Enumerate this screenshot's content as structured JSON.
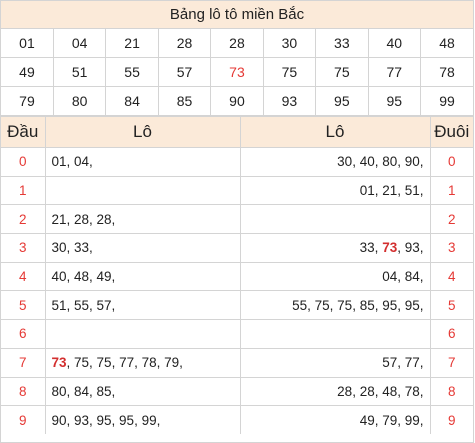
{
  "title": "Bảng lô tô miền Bắc",
  "numbers": [
    [
      "01",
      "04",
      "21",
      "28",
      "28",
      "30",
      "33",
      "40",
      "48"
    ],
    [
      "49",
      "51",
      "55",
      "57",
      "73",
      "75",
      "75",
      "77",
      "78"
    ],
    [
      "79",
      "80",
      "84",
      "85",
      "90",
      "93",
      "95",
      "95",
      "99"
    ]
  ],
  "highlight_number": "73",
  "highlight_color": "#e53935",
  "headers": {
    "dau": "Đầu",
    "lo_left": "Lô",
    "lo_right": "Lô",
    "duoi": "Đuôi"
  },
  "rows": [
    {
      "dau": "0",
      "left": "01, 04,",
      "right": "30, 40, 80, 90,",
      "duoi": "0"
    },
    {
      "dau": "1",
      "left": "",
      "right": "01, 21, 51,",
      "duoi": "1"
    },
    {
      "dau": "2",
      "left": "21, 28, 28,",
      "right": "",
      "duoi": "2"
    },
    {
      "dau": "3",
      "left": "30, 33,",
      "right": "33, 73, 93,",
      "duoi": "3"
    },
    {
      "dau": "4",
      "left": "40, 48, 49,",
      "right": "04, 84,",
      "duoi": "4"
    },
    {
      "dau": "5",
      "left": "51, 55, 57,",
      "right": "55, 75, 75, 85, 95, 95,",
      "duoi": "5"
    },
    {
      "dau": "6",
      "left": "",
      "right": "",
      "duoi": "6"
    },
    {
      "dau": "7",
      "left": "73, 75, 75, 77, 78, 79,",
      "right": "57, 77,",
      "duoi": "7"
    },
    {
      "dau": "8",
      "left": "80, 84, 85,",
      "right": "28, 28, 48, 78,",
      "duoi": "8"
    },
    {
      "dau": "9",
      "left": "90, 93, 95, 95, 99,",
      "right": "49, 79, 99,",
      "duoi": "9"
    }
  ]
}
